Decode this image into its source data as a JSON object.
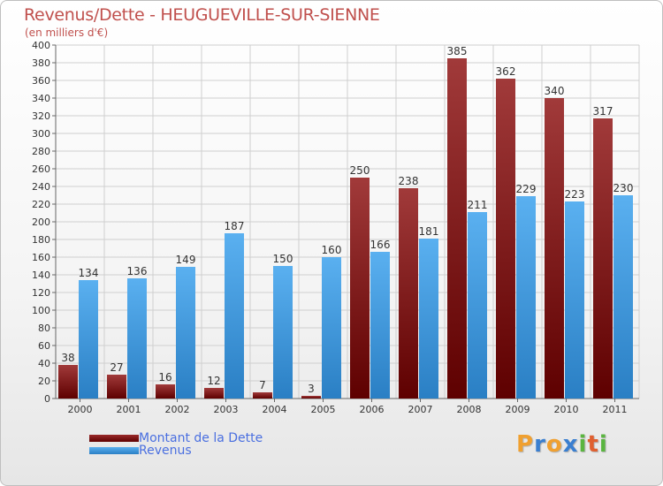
{
  "chart_data": {
    "type": "bar",
    "title": "Revenus/Dette - HEUGUEVILLE-SUR-SIENNE",
    "subtitle": "(en milliers d'€)",
    "xlabel": "",
    "ylabel": "",
    "ylim": [
      0,
      400
    ],
    "ytick_step": 20,
    "grid": true,
    "categories": [
      "2000",
      "2001",
      "2002",
      "2003",
      "2004",
      "2005",
      "2006",
      "2007",
      "2008",
      "2009",
      "2010",
      "2011"
    ],
    "series": [
      {
        "name": "Montant de la Dette",
        "color": "#7a1414",
        "values": [
          38,
          27,
          16,
          12,
          7,
          3,
          250,
          238,
          385,
          362,
          340,
          317
        ]
      },
      {
        "name": "Revenus",
        "color": "#3f9be0",
        "values": [
          134,
          136,
          149,
          187,
          150,
          160,
          166,
          181,
          211,
          229,
          223,
          230
        ]
      }
    ],
    "legend_position": "bottom-left"
  },
  "legend": {
    "debt_label": "Montant de la Dette",
    "revenue_label": "Revenus"
  },
  "brand": {
    "letters": [
      "P",
      "r",
      "o",
      "x",
      "i",
      "t",
      "i"
    ],
    "colors": [
      "#f0a030",
      "#3a7fd0",
      "#f0a030",
      "#3a7fd0",
      "#5ab540",
      "#e06030",
      "#5ab540"
    ]
  }
}
